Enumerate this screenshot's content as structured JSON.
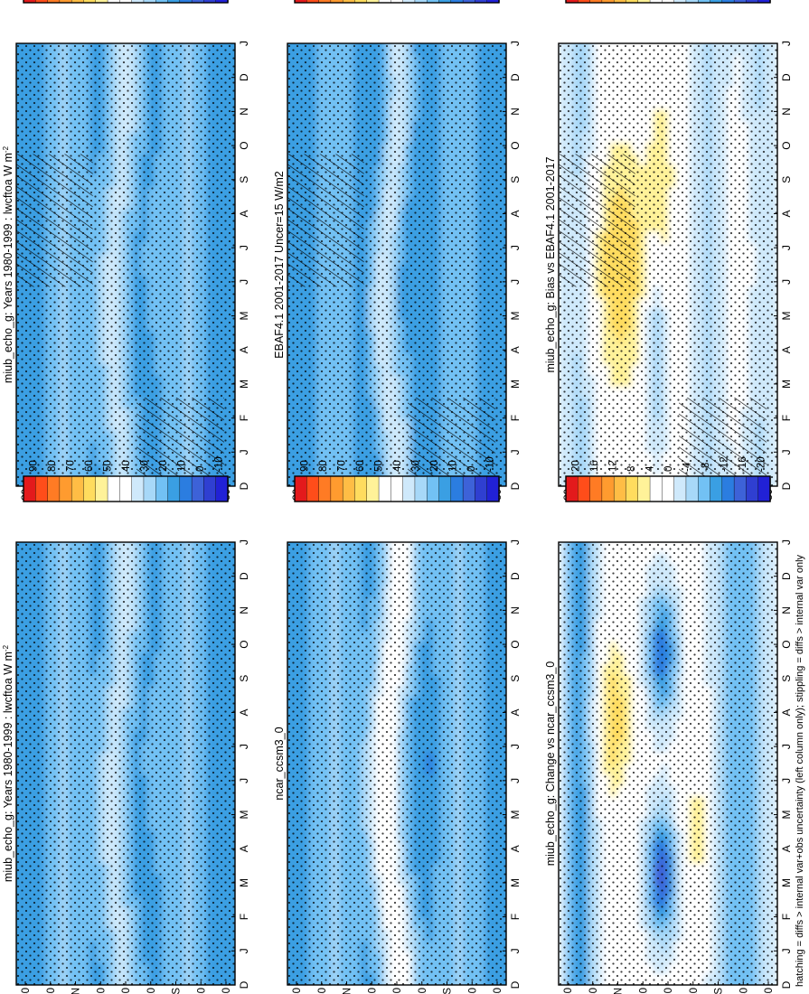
{
  "figure_caption": "hatching = diffs > internal var+obs uncertainty (left column only); stippling = diffs > internal var only",
  "colors": {
    "abs_scale": [
      "#e31a1c",
      "#ff4d1a",
      "#ff7b24",
      "#ff9b2f",
      "#ffbd45",
      "#ffdc5e",
      "#fff299",
      "#ffffff",
      "#ffffff",
      "#cfe9fb",
      "#a7d8f8",
      "#72c1f4",
      "#3a9fe3",
      "#2b7de0",
      "#3d62d8",
      "#2f3fd1",
      "#2121d6"
    ],
    "diff_scale": [
      "#e31a1c",
      "#ff4d1a",
      "#ff7b24",
      "#ff9b2f",
      "#ffbd45",
      "#ffdc5e",
      "#fff299",
      "#ffffff",
      "#ffffff",
      "#cfe9fb",
      "#a7d8f8",
      "#72c1f4",
      "#3a9fe3",
      "#2b7de0",
      "#3d62d8",
      "#2f3fd1",
      "#2121d6"
    ],
    "hatch_icon": "diagonal-hatch",
    "stipple_icon": "dot-stipple"
  },
  "chart_data": [
    {
      "type": "heatmap",
      "panel": "top-left",
      "title": "miub_echo_g: Years 1980-1999 : lwcftoa W m",
      "title_sup": "-2",
      "months": [
        "D",
        "J",
        "F",
        "M",
        "A",
        "M",
        "J",
        "J",
        "A",
        "S",
        "O",
        "N",
        "D",
        "J"
      ],
      "lat_ticks": [
        "80",
        "60",
        "°N",
        "20",
        "0",
        "20",
        "°S",
        "60",
        "80"
      ],
      "colorbar_labels": [
        "90",
        "80",
        "70",
        "60",
        "50",
        "40",
        "30",
        "20",
        "10",
        "0",
        "-10"
      ],
      "field": "abs",
      "range": [
        -15,
        95
      ],
      "hatched": true,
      "stippled": true
    },
    {
      "type": "heatmap",
      "panel": "top-right",
      "title": "miub_echo_g: Years 1980-1999 : lwcftoa W m",
      "title_sup": "-2",
      "months": [
        "D",
        "J",
        "F",
        "M",
        "A",
        "M",
        "J",
        "J",
        "A",
        "S",
        "O",
        "N",
        "D",
        "J"
      ],
      "lat_ticks": [
        "80",
        "60",
        "°N",
        "20",
        "0",
        "20",
        "°S",
        "60",
        "80"
      ],
      "colorbar_labels": [
        "90",
        "80",
        "70",
        "60",
        "50",
        "40",
        "30",
        "20",
        "10",
        "0",
        "-10"
      ],
      "field": "abs",
      "range": [
        -15,
        95
      ],
      "hatched": false,
      "stippled": true
    },
    {
      "type": "heatmap",
      "panel": "middle-left",
      "title": "EBAF4.1 2001-2017 Uncer=15 W/m2",
      "title_sup": "",
      "months": [
        "D",
        "J",
        "F",
        "M",
        "A",
        "M",
        "J",
        "J",
        "A",
        "S",
        "O",
        "N",
        "D",
        "J"
      ],
      "lat_ticks": [
        "80",
        "60",
        "°N",
        "20",
        "0",
        "20",
        "°S",
        "60",
        "80"
      ],
      "colorbar_labels": [
        "90",
        "80",
        "70",
        "60",
        "50",
        "40",
        "30",
        "20",
        "10",
        "0",
        "-10"
      ],
      "field": "obs",
      "range": [
        -15,
        95
      ],
      "hatched": true,
      "stippled": true
    },
    {
      "type": "heatmap",
      "panel": "middle-right",
      "title": "ncar_ccsm3_0",
      "title_sup": "",
      "months": [
        "D",
        "J",
        "F",
        "M",
        "A",
        "M",
        "J",
        "J",
        "A",
        "S",
        "O",
        "N",
        "D",
        "J"
      ],
      "lat_ticks": [
        "80",
        "60",
        "°N",
        "20",
        "0",
        "20",
        "°S",
        "60",
        "80"
      ],
      "colorbar_labels": [
        "90",
        "80",
        "70",
        "60",
        "50",
        "40",
        "30",
        "20",
        "10",
        "0",
        "-10"
      ],
      "field": "ncar",
      "range": [
        -15,
        95
      ],
      "hatched": false,
      "stippled": true
    },
    {
      "type": "heatmap",
      "panel": "bottom-left",
      "title": "miub_echo_g: Bias vs EBAF4.1 2001-2017",
      "title_sup": "",
      "months": [
        "D",
        "J",
        "F",
        "M",
        "A",
        "M",
        "J",
        "J",
        "A",
        "S",
        "O",
        "N",
        "D",
        "J"
      ],
      "lat_ticks": [
        "80",
        "60",
        "°N",
        "20",
        "0",
        "20",
        "°S",
        "60",
        "80"
      ],
      "colorbar_labels": [
        "20",
        "16",
        "12",
        "8",
        "4",
        "0",
        "-4",
        "-8",
        "-12",
        "-16",
        "-20"
      ],
      "field": "bias",
      "range": [
        -22,
        22
      ],
      "hatched": true,
      "stippled": true
    },
    {
      "type": "heatmap",
      "panel": "bottom-right",
      "title": "miub_echo_g: Change vs ncar_ccsm3_0",
      "title_sup": "",
      "months": [
        "D",
        "J",
        "F",
        "M",
        "A",
        "M",
        "J",
        "J",
        "A",
        "S",
        "O",
        "N",
        "D",
        "J"
      ],
      "lat_ticks": [
        "80",
        "60",
        "°N",
        "20",
        "0",
        "20",
        "°S",
        "60",
        "80"
      ],
      "colorbar_labels": [
        "20",
        "16",
        "12",
        "8",
        "4",
        "0",
        "-4",
        "-8",
        "-12",
        "-16",
        "-20"
      ],
      "field": "change",
      "range": [
        -22,
        22
      ],
      "hatched": false,
      "stippled": true
    }
  ]
}
